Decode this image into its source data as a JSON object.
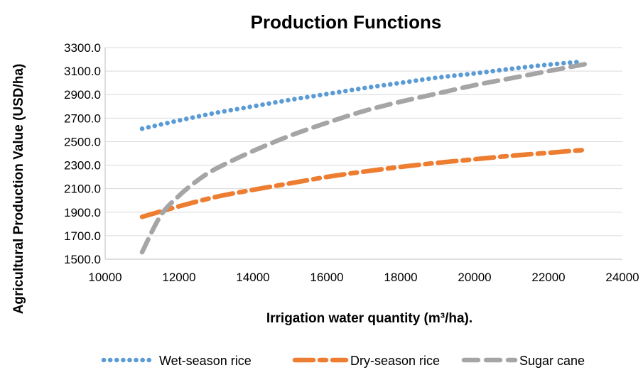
{
  "chart_data": {
    "type": "line",
    "title": "Production Functions",
    "xlabel": "Irrigation water quantity (m³/ha).",
    "ylabel": "Agricultural Production Value (USD/ha)",
    "xlim": [
      10000,
      24000
    ],
    "ylim": [
      1500,
      3300
    ],
    "xticks": [
      10000,
      12000,
      14000,
      16000,
      18000,
      20000,
      22000,
      24000
    ],
    "xtick_labels": [
      "10000",
      "12000",
      "14000",
      "16000",
      "18000",
      "20000",
      "22000",
      "24000"
    ],
    "yticks": [
      1500,
      1700,
      1900,
      2100,
      2300,
      2500,
      2700,
      2900,
      3100,
      3300
    ],
    "ytick_labels": [
      "1500.0",
      "1700.0",
      "1900.0",
      "2100.0",
      "2300.0",
      "2500.0",
      "2700.0",
      "2900.0",
      "3100.0",
      "3300.0"
    ],
    "grid": "horizontal",
    "legend_position": "bottom",
    "series": [
      {
        "name": "Wet-season rice",
        "color": "#5B9BD5",
        "dash": "dotted",
        "x": [
          11000,
          12000,
          13000,
          14000,
          15000,
          16000,
          17000,
          18000,
          19000,
          20000,
          21000,
          22000,
          22900
        ],
        "y": [
          2610,
          2680,
          2745,
          2800,
          2855,
          2905,
          2955,
          3000,
          3045,
          3080,
          3120,
          3155,
          3180
        ]
      },
      {
        "name": "Dry-season rice",
        "color": "#ED7D31",
        "dash": "dashdot",
        "x": [
          11000,
          12000,
          13000,
          14000,
          15000,
          16000,
          17000,
          18000,
          19000,
          20000,
          21000,
          22000,
          23000
        ],
        "y": [
          1860,
          1950,
          2030,
          2090,
          2145,
          2200,
          2245,
          2285,
          2320,
          2350,
          2380,
          2405,
          2430
        ]
      },
      {
        "name": "Sugar cane",
        "color": "#A5A5A5",
        "dash": "dashed",
        "x": [
          11000,
          11500,
          12000,
          12500,
          13000,
          14000,
          15000,
          16000,
          17000,
          18000,
          19000,
          20000,
          21000,
          22000,
          23000
        ],
        "y": [
          1560,
          1870,
          2040,
          2170,
          2270,
          2420,
          2550,
          2660,
          2760,
          2840,
          2910,
          2980,
          3040,
          3100,
          3160
        ]
      }
    ]
  }
}
